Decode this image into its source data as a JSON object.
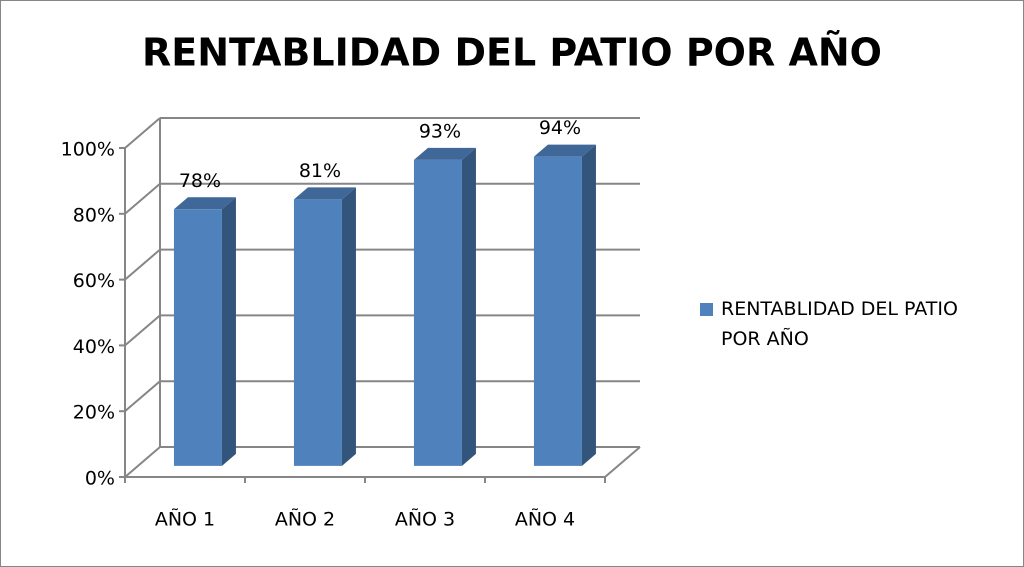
{
  "chart_data": {
    "type": "bar",
    "title": "RENTABLIDAD DEL PATIO POR AÑO",
    "categories": [
      "AÑO 1",
      "AÑO 2",
      "AÑO 3",
      "AÑO 4"
    ],
    "series": [
      {
        "name": "RENTABLIDAD DEL PATIO POR AÑO",
        "color": "#4f81bd",
        "values": [
          78,
          81,
          93,
          94
        ]
      }
    ],
    "value_labels": [
      "78%",
      "81%",
      "93%",
      "94%"
    ],
    "ylim": [
      0,
      100
    ],
    "yticks": [
      {
        "value": 0,
        "label": "0%"
      },
      {
        "value": 20,
        "label": "20%"
      },
      {
        "value": 40,
        "label": "40%"
      },
      {
        "value": 60,
        "label": "60%"
      },
      {
        "value": 80,
        "label": "80%"
      },
      {
        "value": 100,
        "label": "100%"
      }
    ],
    "grid": true,
    "legend": "right"
  }
}
